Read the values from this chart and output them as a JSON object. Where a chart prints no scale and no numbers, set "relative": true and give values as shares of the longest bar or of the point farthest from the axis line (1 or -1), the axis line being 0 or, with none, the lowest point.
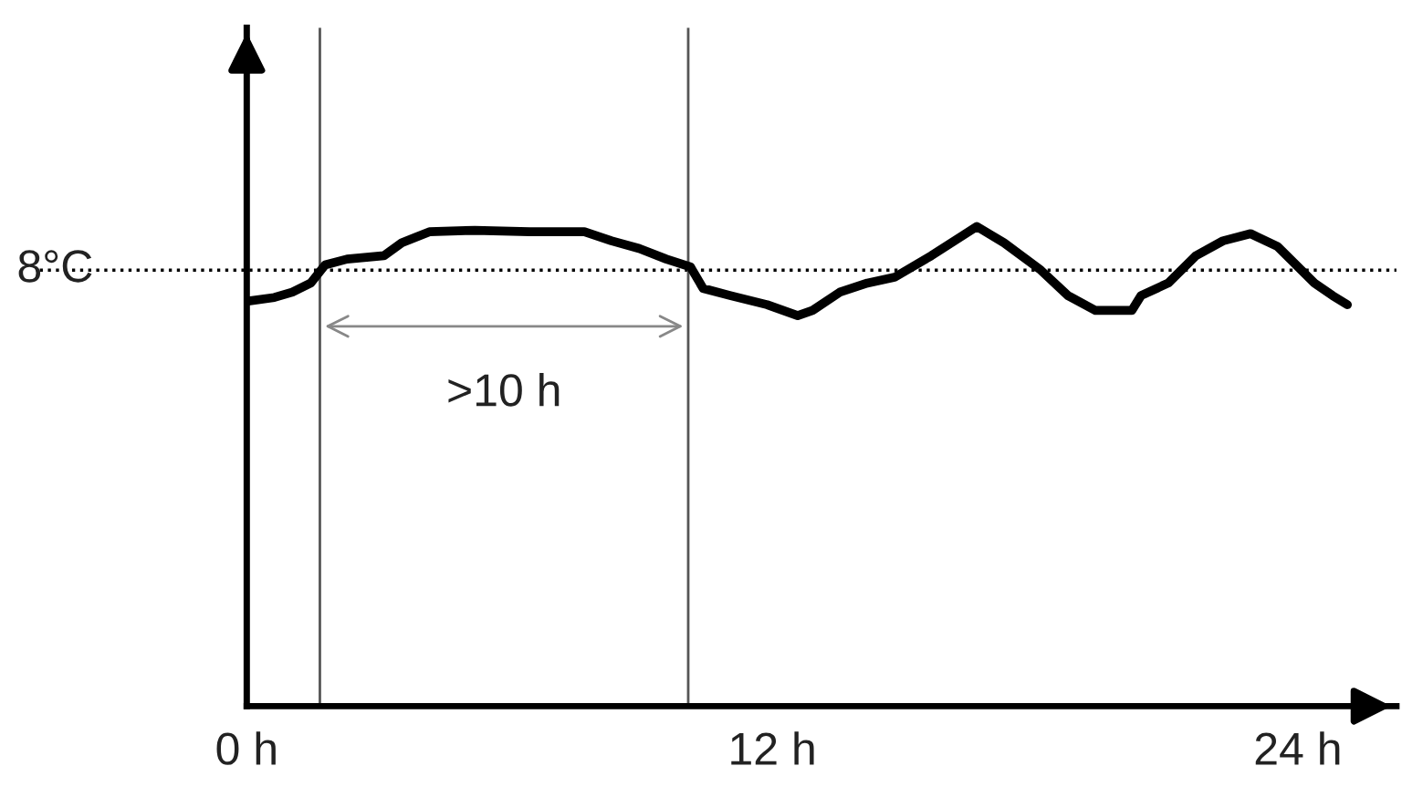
{
  "chart_data": {
    "type": "line",
    "relative": true,
    "x": [
      0,
      0.63,
      1.04,
      1.46,
      1.79,
      2.29,
      3.13,
      3.54,
      4.17,
      5.21,
      6.46,
      7.71,
      8.33,
      8.96,
      9.58,
      10.13,
      10.42,
      11.04,
      11.88,
      12.58,
      12.92,
      13.54,
      14.17,
      14.79,
      15.63,
      16.67,
      17.29,
      18.13,
      18.75,
      19.38,
      20.21,
      20.42,
      21.04,
      21.67,
      22.29,
      22.92,
      23.54,
      24.38,
      24.79,
      25.13
    ],
    "series": [
      {
        "color": "#000000",
        "values": [
          0.844,
          0.852,
          0.863,
          0.882,
          0.92,
          0.932,
          0.939,
          0.966,
          0.989,
          0.992,
          0.989,
          0.989,
          0.97,
          0.954,
          0.932,
          0.916,
          0.871,
          0.856,
          0.837,
          0.814,
          0.825,
          0.863,
          0.882,
          0.894,
          0.939,
          1.0,
          0.966,
          0.909,
          0.856,
          0.825,
          0.825,
          0.856,
          0.882,
          0.939,
          0.97,
          0.985,
          0.958,
          0.882,
          0.856,
          0.837
        ]
      }
    ],
    "xlim": [
      0,
      26.25
    ],
    "xticks": [
      {
        "value": 0,
        "label": "0 h"
      },
      {
        "value": 12,
        "label": "12 h"
      },
      {
        "value": 24,
        "label": "24 h"
      }
    ],
    "ref_lines": [
      {
        "axis": "y",
        "value": 0.909,
        "label": "8°C",
        "color": "#000000",
        "line_style": "dotted"
      },
      {
        "axis": "x",
        "value": 1.67,
        "color": "#555555",
        "line_style": "solid"
      },
      {
        "axis": "x",
        "value": 10.08,
        "color": "#555555",
        "line_style": "solid"
      }
    ],
    "annotations": [
      ">10 h"
    ],
    "grid": false,
    "marker": "none",
    "line_style": "solid"
  }
}
